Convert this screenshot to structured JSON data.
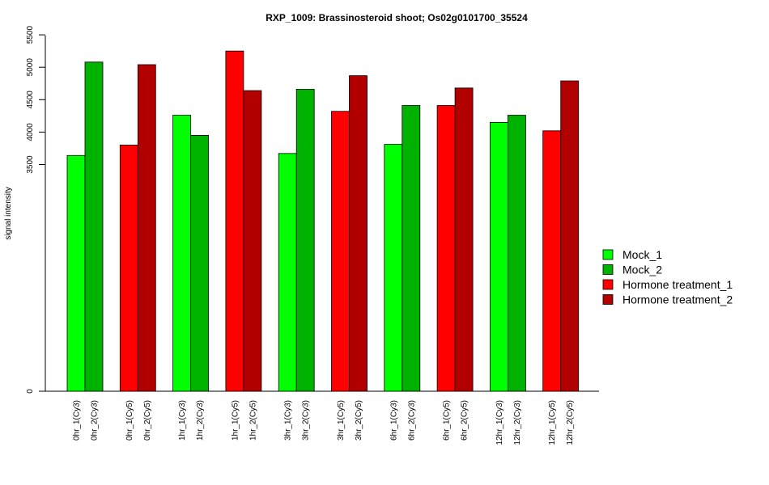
{
  "chart_data": {
    "type": "bar",
    "title": "RXP_1009: Brassinosteroid shoot; Os02g0101700_35524",
    "ylabel": "signal intensity",
    "xlabel": "",
    "yticks": [
      0,
      3500,
      4000,
      4500,
      5000,
      5500
    ],
    "categories": [
      "0hr_1(Cy3)",
      "0hr_2(Cy3)",
      "0hr_1(Cy5)",
      "0hr_2(Cy5)",
      "1hr_1(Cy3)",
      "1hr_2(Cy3)",
      "1hr_1(Cy5)",
      "1hr_2(Cy5)",
      "3hr_1(Cy3)",
      "3hr_2(Cy3)",
      "3hr_1(Cy5)",
      "3hr_2(Cy5)",
      "6hr_1(Cy3)",
      "6hr_2(Cy3)",
      "6hr_1(Cy5)",
      "6hr_2(Cy5)",
      "12hr_1(Cy3)",
      "12hr_2(Cy3)",
      "12hr_1(Cy5)",
      "12hr_2(Cy5)"
    ],
    "values": [
      3640,
      5080,
      3800,
      5040,
      4260,
      3950,
      5250,
      4640,
      3670,
      4660,
      4320,
      4870,
      3810,
      4410,
      4410,
      4680,
      4150,
      4260,
      4020,
      4790
    ],
    "series_index": [
      0,
      1,
      2,
      3,
      0,
      1,
      2,
      3,
      0,
      1,
      2,
      3,
      0,
      1,
      2,
      3,
      0,
      1,
      2,
      3
    ],
    "series": [
      {
        "name": "Mock_1",
        "color": "#00ff00"
      },
      {
        "name": "Mock_2",
        "color": "#00b200"
      },
      {
        "name": "Hormone treatment_1",
        "color": "#ff0000"
      },
      {
        "name": "Hormone treatment_2",
        "color": "#b20000"
      }
    ],
    "grid": false,
    "legend_position": "right"
  }
}
